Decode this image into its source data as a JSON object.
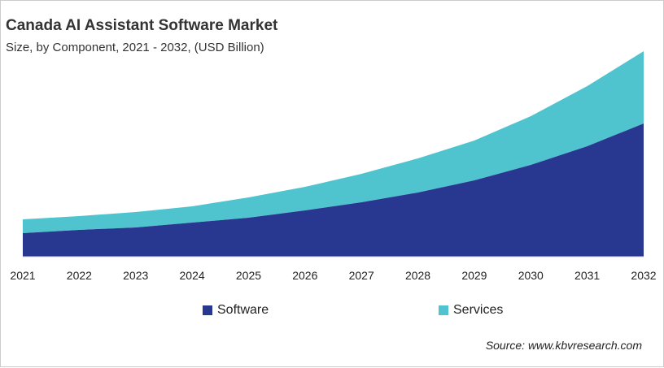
{
  "chart_data": {
    "type": "area",
    "stacked": true,
    "title": "Canada AI Assistant Software Market",
    "subtitle": "Size, by Component, 2021 - 2032, (USD Billion)",
    "xlabel": "",
    "ylabel": "",
    "y_axis_shown": false,
    "grid": false,
    "legend_position": "bottom",
    "categories": [
      "2021",
      "2022",
      "2023",
      "2024",
      "2025",
      "2026",
      "2027",
      "2028",
      "2029",
      "2030",
      "2031",
      "2032"
    ],
    "series": [
      {
        "name": "Software",
        "color": "#283890",
        "values": [
          29,
          33,
          36,
          42,
          48,
          57,
          67,
          79,
          94,
          113,
          136,
          164
        ]
      },
      {
        "name": "Services",
        "color": "#4fc4cf",
        "values": [
          17,
          17,
          19,
          20,
          25,
          29,
          35,
          42,
          49,
          60,
          74,
          89
        ]
      }
    ]
  },
  "source": "Source: www.kbvresearch.com"
}
